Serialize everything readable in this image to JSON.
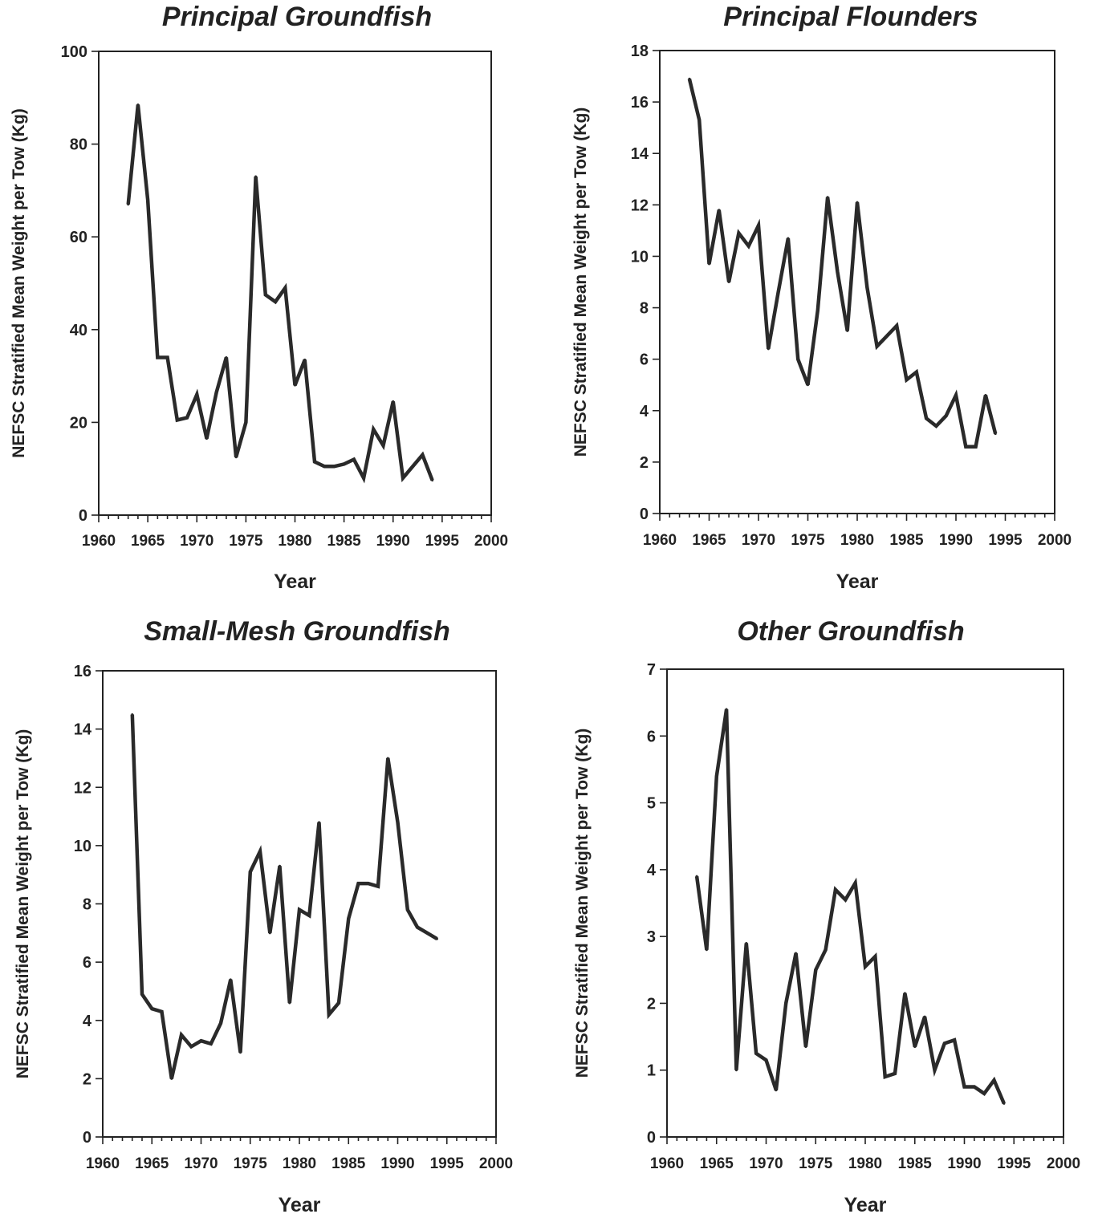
{
  "chart_data": [
    {
      "type": "line",
      "title": "Principal Groundfish",
      "xlabel": "Year",
      "ylabel": "NEFSC Stratified Mean Weight per Tow (Kg)",
      "xlim": [
        1960,
        2000
      ],
      "ylim": [
        0,
        100
      ],
      "xticks": [
        "1960",
        "1965",
        "1970",
        "1975",
        "1980",
        "1985",
        "1990",
        "1995",
        "2000"
      ],
      "yticks": [
        "0",
        "20",
        "40",
        "60",
        "80",
        "100"
      ],
      "x": [
        1963,
        1964,
        1965,
        1966,
        1967,
        1968,
        1969,
        1970,
        1971,
        1972,
        1973,
        1974,
        1975,
        1976,
        1977,
        1978,
        1979,
        1980,
        1981,
        1982,
        1983,
        1984,
        1985,
        1986,
        1987,
        1988,
        1989,
        1990,
        1991,
        1992,
        1993,
        1994
      ],
      "series": [
        {
          "values": [
            67,
            88.5,
            68,
            34,
            34,
            20.5,
            21,
            26,
            16.5,
            26.5,
            34,
            12.5,
            20,
            73,
            47.5,
            46,
            49,
            28,
            33.5,
            11.5,
            10.5,
            10.5,
            11,
            12,
            8,
            18.5,
            15,
            24.5,
            8,
            10.5,
            13,
            7.5
          ]
        }
      ]
    },
    {
      "type": "line",
      "title": "Principal Flounders",
      "xlabel": "Year",
      "ylabel": "NEFSC Stratified Mean Weight per Tow (Kg)",
      "xlim": [
        1960,
        2000
      ],
      "ylim": [
        0,
        18
      ],
      "xticks": [
        "1960",
        "1965",
        "1970",
        "1975",
        "1980",
        "1985",
        "1990",
        "1995",
        "2000"
      ],
      "yticks": [
        "0",
        "2",
        "4",
        "6",
        "8",
        "10",
        "12",
        "14",
        "16",
        "18"
      ],
      "x": [
        1963,
        1964,
        1965,
        1966,
        1967,
        1968,
        1969,
        1970,
        1971,
        1972,
        1973,
        1974,
        1975,
        1976,
        1977,
        1978,
        1979,
        1980,
        1981,
        1982,
        1983,
        1984,
        1985,
        1986,
        1987,
        1988,
        1989,
        1990,
        1991,
        1992,
        1993,
        1994
      ],
      "series": [
        {
          "values": [
            16.9,
            15.3,
            9.7,
            11.8,
            9,
            10.9,
            10.4,
            11.2,
            6.4,
            8.6,
            10.7,
            6,
            5,
            7.9,
            12.3,
            9.4,
            7.1,
            12.1,
            8.8,
            6.5,
            6.9,
            7.3,
            5.2,
            5.5,
            3.7,
            3.4,
            3.8,
            4.6,
            2.6,
            2.6,
            4.6,
            3.1
          ]
        }
      ]
    },
    {
      "type": "line",
      "title": "Small-Mesh Groundfish",
      "xlabel": "Year",
      "ylabel": "NEFSC Stratified Mean Weight per Tow (Kg)",
      "xlim": [
        1960,
        2000
      ],
      "ylim": [
        0,
        16
      ],
      "xticks": [
        "1960",
        "1965",
        "1970",
        "1975",
        "1980",
        "1985",
        "1990",
        "1995",
        "2000"
      ],
      "yticks": [
        "0",
        "2",
        "4",
        "6",
        "8",
        "10",
        "12",
        "14",
        "16"
      ],
      "x": [
        1963,
        1964,
        1965,
        1966,
        1967,
        1968,
        1969,
        1970,
        1971,
        1972,
        1973,
        1974,
        1975,
        1976,
        1977,
        1978,
        1979,
        1980,
        1981,
        1982,
        1983,
        1984,
        1985,
        1986,
        1987,
        1988,
        1989,
        1990,
        1991,
        1992,
        1993,
        1994
      ],
      "series": [
        {
          "values": [
            14.5,
            4.9,
            4.4,
            4.3,
            2,
            3.5,
            3.1,
            3.3,
            3.2,
            3.9,
            5.4,
            2.9,
            9.1,
            9.8,
            7,
            9.3,
            4.6,
            7.8,
            7.6,
            10.8,
            4.2,
            4.6,
            7.5,
            8.7,
            8.7,
            8.6,
            13,
            10.8,
            7.8,
            7.2,
            7,
            6.8
          ]
        }
      ]
    },
    {
      "type": "line",
      "title": "Other Groundfish",
      "xlabel": "Year",
      "ylabel": "NEFSC Stratified Mean Weight per Tow (Kg)",
      "xlim": [
        1960,
        2000
      ],
      "ylim": [
        0,
        7
      ],
      "xticks": [
        "1960",
        "1965",
        "1970",
        "1975",
        "1980",
        "1985",
        "1990",
        "1995",
        "2000"
      ],
      "yticks": [
        "0",
        "1",
        "2",
        "3",
        "4",
        "5",
        "6",
        "7"
      ],
      "x": [
        1963,
        1964,
        1965,
        1966,
        1967,
        1968,
        1969,
        1970,
        1971,
        1972,
        1973,
        1974,
        1975,
        1976,
        1977,
        1978,
        1979,
        1980,
        1981,
        1982,
        1983,
        1984,
        1985,
        1986,
        1987,
        1988,
        1989,
        1990,
        1991,
        1992,
        1993,
        1994
      ],
      "series": [
        {
          "values": [
            3.9,
            2.8,
            5.4,
            6.4,
            1,
            2.9,
            1.25,
            1.15,
            0.7,
            2,
            2.75,
            1.35,
            2.5,
            2.8,
            3.7,
            3.55,
            3.8,
            2.55,
            2.7,
            0.9,
            0.95,
            2.15,
            1.35,
            1.8,
            1,
            1.4,
            1.45,
            0.75,
            0.75,
            0.65,
            0.85,
            0.5
          ]
        }
      ]
    }
  ]
}
